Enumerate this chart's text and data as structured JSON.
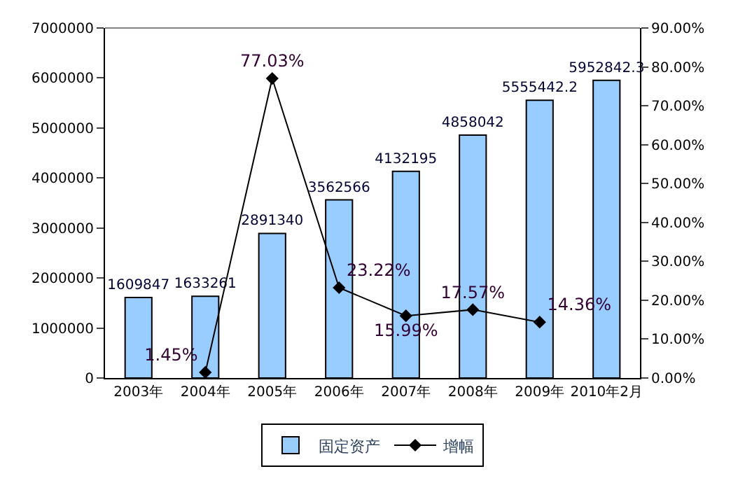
{
  "chart_data": {
    "type": "bar",
    "categories": [
      "2003年",
      "2004年",
      "2005年",
      "2006年",
      "2007年",
      "2008年",
      "2009年",
      "2010年2月"
    ],
    "series": [
      {
        "name": "固定资产",
        "color": "#99ccff",
        "values": [
          1609847,
          1633261,
          2891340,
          3562566,
          4132195,
          4858042,
          5555442.2,
          5952842.3
        ],
        "value_labels": [
          "1609847",
          "1633261",
          "2891340",
          "3562566",
          "4132195",
          "4858042",
          "5555442.2",
          "5952842.3"
        ]
      },
      {
        "name": "增幅",
        "type": "line",
        "axis": "y2",
        "color": "#000000",
        "marker": "diamond",
        "values": [
          null,
          1.45,
          77.03,
          23.22,
          15.99,
          17.57,
          14.36,
          null
        ],
        "value_labels": [
          null,
          "1.45%",
          "77.03%",
          "23.22%",
          "15.99%",
          "17.57%",
          "14.36%",
          null
        ]
      }
    ],
    "ylim": [
      0,
      7000000
    ],
    "yticks": [
      0,
      1000000,
      2000000,
      3000000,
      4000000,
      5000000,
      6000000,
      7000000
    ],
    "y2lim": [
      0,
      90
    ],
    "y2ticks": [
      {
        "value": 0,
        "label": "0.00%"
      },
      {
        "value": 10,
        "label": "10.00%"
      },
      {
        "value": 20,
        "label": "20.00%"
      },
      {
        "value": 30,
        "label": "30.00%"
      },
      {
        "value": 40,
        "label": "40.00%"
      },
      {
        "value": 50,
        "label": "50.00%"
      },
      {
        "value": 60,
        "label": "60.00%"
      },
      {
        "value": 70,
        "label": "70.00%"
      },
      {
        "value": 80,
        "label": "80.00%"
      },
      {
        "value": 90,
        "label": "90.00%"
      }
    ],
    "grid": false,
    "legend": "bottom"
  }
}
